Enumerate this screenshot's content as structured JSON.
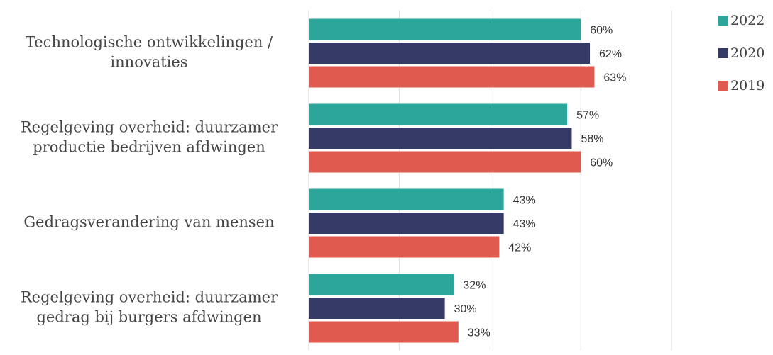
{
  "chart_data": {
    "type": "hbar",
    "categories": [
      [
        "Technologische ontwikkelingen /",
        "innovaties"
      ],
      [
        "Regelgeving overheid: duurzamer",
        "productie bedrijven afdwingen"
      ],
      [
        "Gedragsverandering van mensen"
      ],
      [
        "Regelgeving overheid: duurzamer",
        "gedrag bij burgers afdwingen"
      ]
    ],
    "series": [
      {
        "name": "2022",
        "color": "#2ca69a",
        "values": [
          60,
          57,
          43,
          32
        ],
        "value_labels": [
          "60%",
          "57%",
          "43%",
          "32%"
        ]
      },
      {
        "name": "2020",
        "color": "#363a66",
        "values": [
          62,
          58,
          43,
          30
        ],
        "value_labels": [
          "62%",
          "58%",
          "43%",
          "30%"
        ]
      },
      {
        "name": "2019",
        "color": "#e05a4f",
        "values": [
          63,
          60,
          42,
          33
        ],
        "value_labels": [
          "63%",
          "60%",
          "42%",
          "33%"
        ]
      }
    ],
    "xlim": [
      0,
      80
    ],
    "xticks": [
      0,
      20,
      40,
      60,
      80
    ],
    "grid": true,
    "legend": "right"
  }
}
